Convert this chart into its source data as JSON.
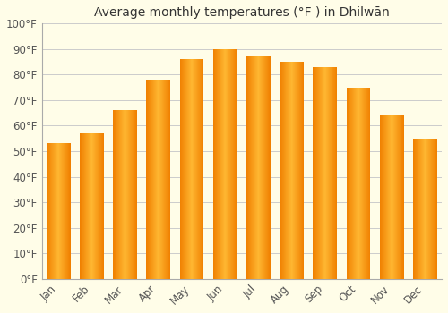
{
  "title": "Average monthly temperatures (°F ) in Dhilwān",
  "months": [
    "Jan",
    "Feb",
    "Mar",
    "Apr",
    "May",
    "Jun",
    "Jul",
    "Aug",
    "Sep",
    "Oct",
    "Nov",
    "Dec"
  ],
  "temperatures": [
    53,
    57,
    66,
    78,
    86,
    90,
    87,
    85,
    83,
    75,
    64,
    55
  ],
  "bar_color_center": "#FFB732",
  "bar_color_edge": "#F08000",
  "ylim": [
    0,
    100
  ],
  "yticks": [
    0,
    10,
    20,
    30,
    40,
    50,
    60,
    70,
    80,
    90,
    100
  ],
  "ytick_labels": [
    "0°F",
    "10°F",
    "20°F",
    "30°F",
    "40°F",
    "50°F",
    "60°F",
    "70°F",
    "80°F",
    "90°F",
    "100°F"
  ],
  "background_color": "#FFFDE8",
  "plot_bg_color": "#FFFDE8",
  "grid_color": "#cccccc",
  "title_fontsize": 10,
  "tick_fontsize": 8.5,
  "bar_width": 0.72
}
